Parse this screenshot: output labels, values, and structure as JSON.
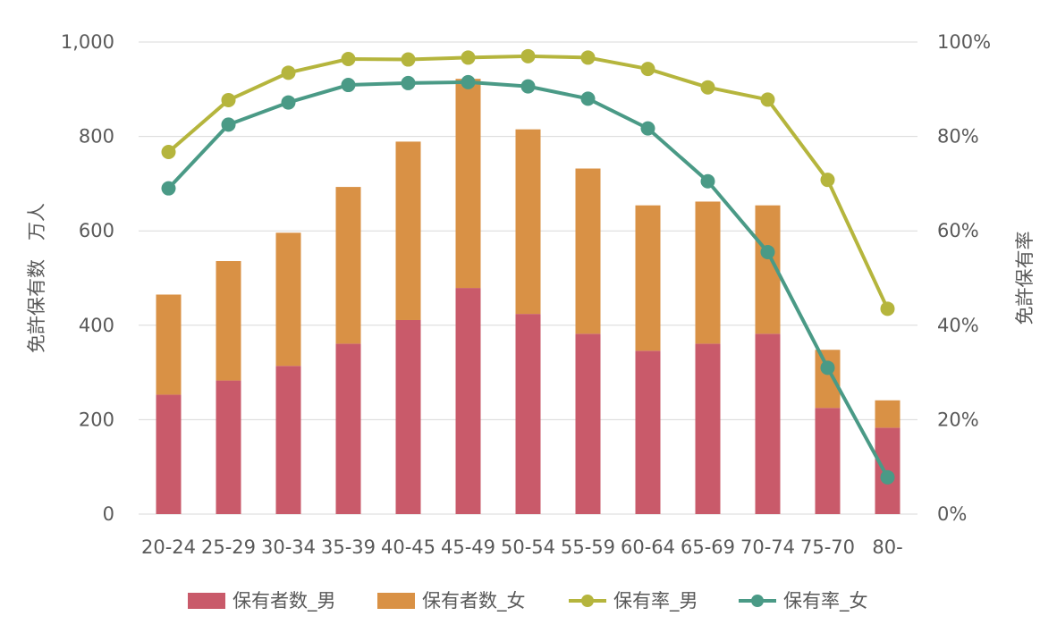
{
  "chart_data": {
    "type": "bar",
    "subtype": "stacked bar + line (dual axis)",
    "categories": [
      "20-24",
      "25-29",
      "30-34",
      "35-39",
      "40-45",
      "45-49",
      "50-54",
      "55-59",
      "60-64",
      "65-69",
      "70-74",
      "75-70",
      "80-"
    ],
    "series": [
      {
        "name": "保有者数_男",
        "kind": "bar",
        "axis": "left",
        "color": "#c95a6a",
        "values": [
          253,
          283,
          314,
          361,
          411,
          479,
          424,
          382,
          346,
          361,
          382,
          225,
          183
        ]
      },
      {
        "name": "保有者数_女",
        "kind": "bar",
        "axis": "left",
        "color": "#d99145",
        "values": [
          212,
          253,
          282,
          332,
          378,
          443,
          391,
          350,
          308,
          301,
          272,
          123,
          58
        ]
      },
      {
        "name": "保有率_男",
        "kind": "line",
        "axis": "right",
        "color": "#b5b53d",
        "values": [
          76.7,
          87.7,
          93.5,
          96.4,
          96.3,
          96.7,
          97.0,
          96.7,
          94.3,
          90.4,
          87.8,
          70.8,
          43.5
        ]
      },
      {
        "name": "保有率_女",
        "kind": "line",
        "axis": "right",
        "color": "#4a9a86",
        "values": [
          69.0,
          82.5,
          87.2,
          90.9,
          91.3,
          91.5,
          90.6,
          88.0,
          81.7,
          70.5,
          55.5,
          31.0,
          7.8
        ]
      }
    ],
    "ylabel": "免許保有数　万人",
    "y2label": "免許保有率",
    "ylim": [
      0,
      1000
    ],
    "y2lim": [
      0,
      100
    ],
    "yticks": [
      "0",
      "200",
      "400",
      "600",
      "800",
      "1,000"
    ],
    "y2ticks": [
      "0%",
      "20%",
      "40%",
      "60%",
      "80%",
      "100%"
    ],
    "grid": true,
    "legend_position": "bottom"
  }
}
